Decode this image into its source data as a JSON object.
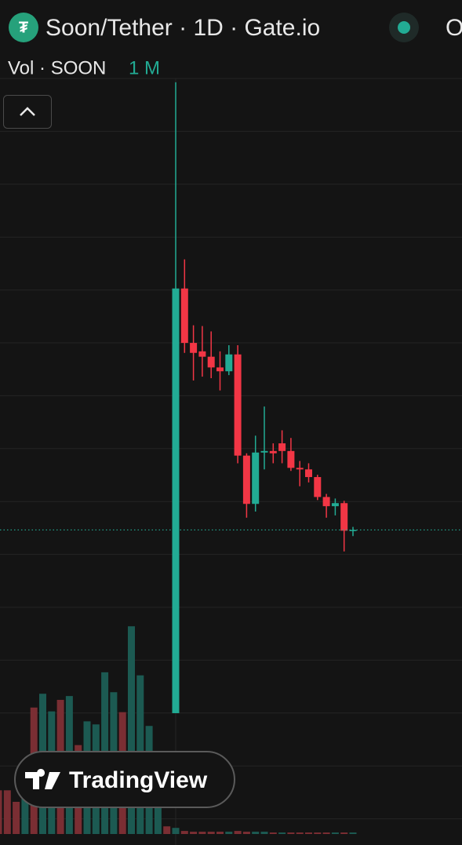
{
  "chart_data": {
    "type": "candlestick",
    "title": "Soon/Tether · 1D · Gate.io",
    "cut_label": "O",
    "volume_title": "Vol · SOON",
    "volume_label": "1 M",
    "watermark": "TradingView",
    "up_color": "#22ab94",
    "down_color": "#f23645",
    "ylim": [
      0,
      100
    ],
    "open": [
      null,
      null,
      null,
      null,
      null,
      null,
      null,
      null,
      null,
      null,
      null,
      null,
      null,
      null,
      null,
      null,
      null,
      null,
      null,
      null,
      17.2,
      72.6,
      65.5,
      64.4,
      63.7,
      62.3,
      61.8,
      64.0,
      50.8,
      44.5,
      51.2,
      51.4,
      52.4,
      51.4,
      49.2,
      49.0,
      48.0,
      45.4,
      44.2,
      44.6,
      41.0
    ],
    "high": [
      null,
      null,
      null,
      null,
      null,
      null,
      null,
      null,
      null,
      null,
      null,
      null,
      null,
      null,
      null,
      null,
      null,
      null,
      null,
      null,
      99.5,
      76.4,
      67.8,
      67.7,
      67.0,
      64.4,
      65.2,
      65.2,
      51.1,
      53.4,
      57.2,
      52.4,
      54.1,
      53.1,
      50.1,
      49.8,
      48.3,
      45.8,
      45.2,
      44.9,
      41.5
    ],
    "low": [
      null,
      null,
      null,
      null,
      null,
      null,
      null,
      null,
      null,
      null,
      null,
      null,
      null,
      null,
      null,
      null,
      null,
      null,
      null,
      null,
      17.2,
      64.2,
      60.6,
      61.1,
      60.9,
      59.3,
      61.3,
      49.8,
      42.7,
      43.5,
      49.0,
      49.8,
      49.8,
      48.8,
      46.8,
      47.3,
      45.0,
      42.7,
      43.0,
      38.3,
      40.3
    ],
    "close": [
      null,
      null,
      null,
      null,
      null,
      null,
      null,
      null,
      null,
      null,
      null,
      null,
      null,
      null,
      null,
      null,
      null,
      null,
      null,
      null,
      72.6,
      65.5,
      64.2,
      63.7,
      62.3,
      61.8,
      64.0,
      50.8,
      44.5,
      51.2,
      51.4,
      51.1,
      51.4,
      49.2,
      49.0,
      48.0,
      45.4,
      44.2,
      44.6,
      41.0,
      41.1
    ],
    "volume": {
      "values": [
        5.7,
        5.7,
        4.2,
        7.5,
        16.5,
        18.3,
        16.0,
        17.5,
        18.0,
        11.6,
        14.7,
        14.3,
        21.1,
        18.5,
        15.9,
        27.1,
        20.7,
        14.1,
        6.4,
        1.0,
        0.8,
        0.4,
        0.3,
        0.3,
        0.3,
        0.3,
        0.3,
        0.4,
        0.3,
        0.3,
        0.3,
        0.2,
        0.2,
        0.2,
        0.2,
        0.2,
        0.2,
        0.2,
        0.2,
        0.2,
        0.2
      ],
      "colors": [
        "#7a2e33",
        "#7a2e33",
        "#7a2e33",
        "#1c5a52",
        "#7a2e33",
        "#1c5a52",
        "#1c5a52",
        "#7a2e33",
        "#1c5a52",
        "#7a2e33",
        "#1c5a52",
        "#1c5a52",
        "#1c5a52",
        "#1c5a52",
        "#7a2e33",
        "#1c5a52",
        "#1c5a52",
        "#1c5a52",
        "#1c5a52",
        "#7a2e33",
        "#1c5a52",
        "#7a2e33",
        "#7a2e33",
        "#7a2e33",
        "#7a2e33",
        "#7a2e33",
        "#1c5a52",
        "#7a2e33",
        "#7a2e33",
        "#1c5a52",
        "#1c5a52",
        "#7a2e33",
        "#1c5a52",
        "#7a2e33",
        "#7a2e33",
        "#7a2e33",
        "#7a2e33",
        "#7a2e33",
        "#1c5a52",
        "#7a2e33",
        "#1c5a52"
      ]
    }
  }
}
